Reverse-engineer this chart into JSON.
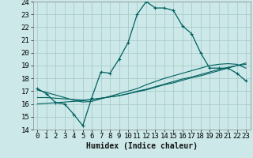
{
  "xlabel": "Humidex (Indice chaleur)",
  "bg_color": "#cce8e8",
  "grid_color": "#aacccc",
  "line_color": "#006060",
  "xlim": [
    0,
    23
  ],
  "ylim": [
    14,
    24
  ],
  "xticks": [
    0,
    1,
    2,
    3,
    4,
    5,
    6,
    7,
    8,
    9,
    10,
    11,
    12,
    13,
    14,
    15,
    16,
    17,
    18,
    19,
    20,
    21,
    22,
    23
  ],
  "yticks": [
    14,
    15,
    16,
    17,
    18,
    19,
    20,
    21,
    22,
    23,
    24
  ],
  "curve1_x": [
    0,
    1,
    2,
    3,
    4,
    5,
    6,
    7,
    8,
    9,
    10,
    11,
    12,
    13,
    14,
    15,
    16,
    17,
    18,
    19,
    20,
    21,
    22,
    23
  ],
  "curve1_y": [
    17.2,
    16.8,
    16.1,
    16.0,
    15.2,
    14.3,
    16.5,
    18.5,
    18.4,
    19.5,
    20.8,
    23.0,
    24.0,
    23.5,
    23.5,
    23.3,
    22.1,
    21.5,
    20.0,
    18.8,
    18.8,
    18.8,
    18.4,
    17.8
  ],
  "curve2_x": [
    0,
    1,
    2,
    3,
    4,
    5,
    6,
    7,
    8,
    9,
    10,
    11,
    12,
    13,
    14,
    15,
    16,
    17,
    18,
    19,
    20,
    21,
    22,
    23
  ],
  "curve2_y": [
    16.0,
    16.05,
    16.1,
    16.15,
    16.2,
    16.25,
    16.35,
    16.45,
    16.55,
    16.65,
    16.8,
    16.95,
    17.1,
    17.3,
    17.5,
    17.65,
    17.85,
    18.05,
    18.2,
    18.4,
    18.6,
    18.8,
    19.0,
    19.2
  ],
  "curve3_x": [
    0,
    1,
    2,
    3,
    4,
    5,
    6,
    7,
    8,
    9,
    10,
    11,
    12,
    13,
    14,
    15,
    16,
    17,
    18,
    19,
    20,
    21,
    22,
    23
  ],
  "curve3_y": [
    16.5,
    16.5,
    16.45,
    16.4,
    16.35,
    16.3,
    16.35,
    16.45,
    16.55,
    16.65,
    16.8,
    17.0,
    17.15,
    17.35,
    17.55,
    17.75,
    17.95,
    18.1,
    18.3,
    18.5,
    18.7,
    18.85,
    19.0,
    19.1
  ],
  "curve4_x": [
    0,
    1,
    2,
    3,
    4,
    5,
    6,
    7,
    8,
    9,
    10,
    11,
    12,
    13,
    14,
    15,
    16,
    17,
    18,
    19,
    20,
    21,
    22,
    23
  ],
  "curve4_y": [
    17.1,
    16.9,
    16.7,
    16.5,
    16.3,
    16.15,
    16.2,
    16.4,
    16.6,
    16.8,
    17.0,
    17.2,
    17.5,
    17.75,
    18.0,
    18.2,
    18.4,
    18.6,
    18.8,
    19.0,
    19.1,
    19.15,
    19.1,
    18.8
  ],
  "font_size_label": 7,
  "font_size_tick": 6.5
}
